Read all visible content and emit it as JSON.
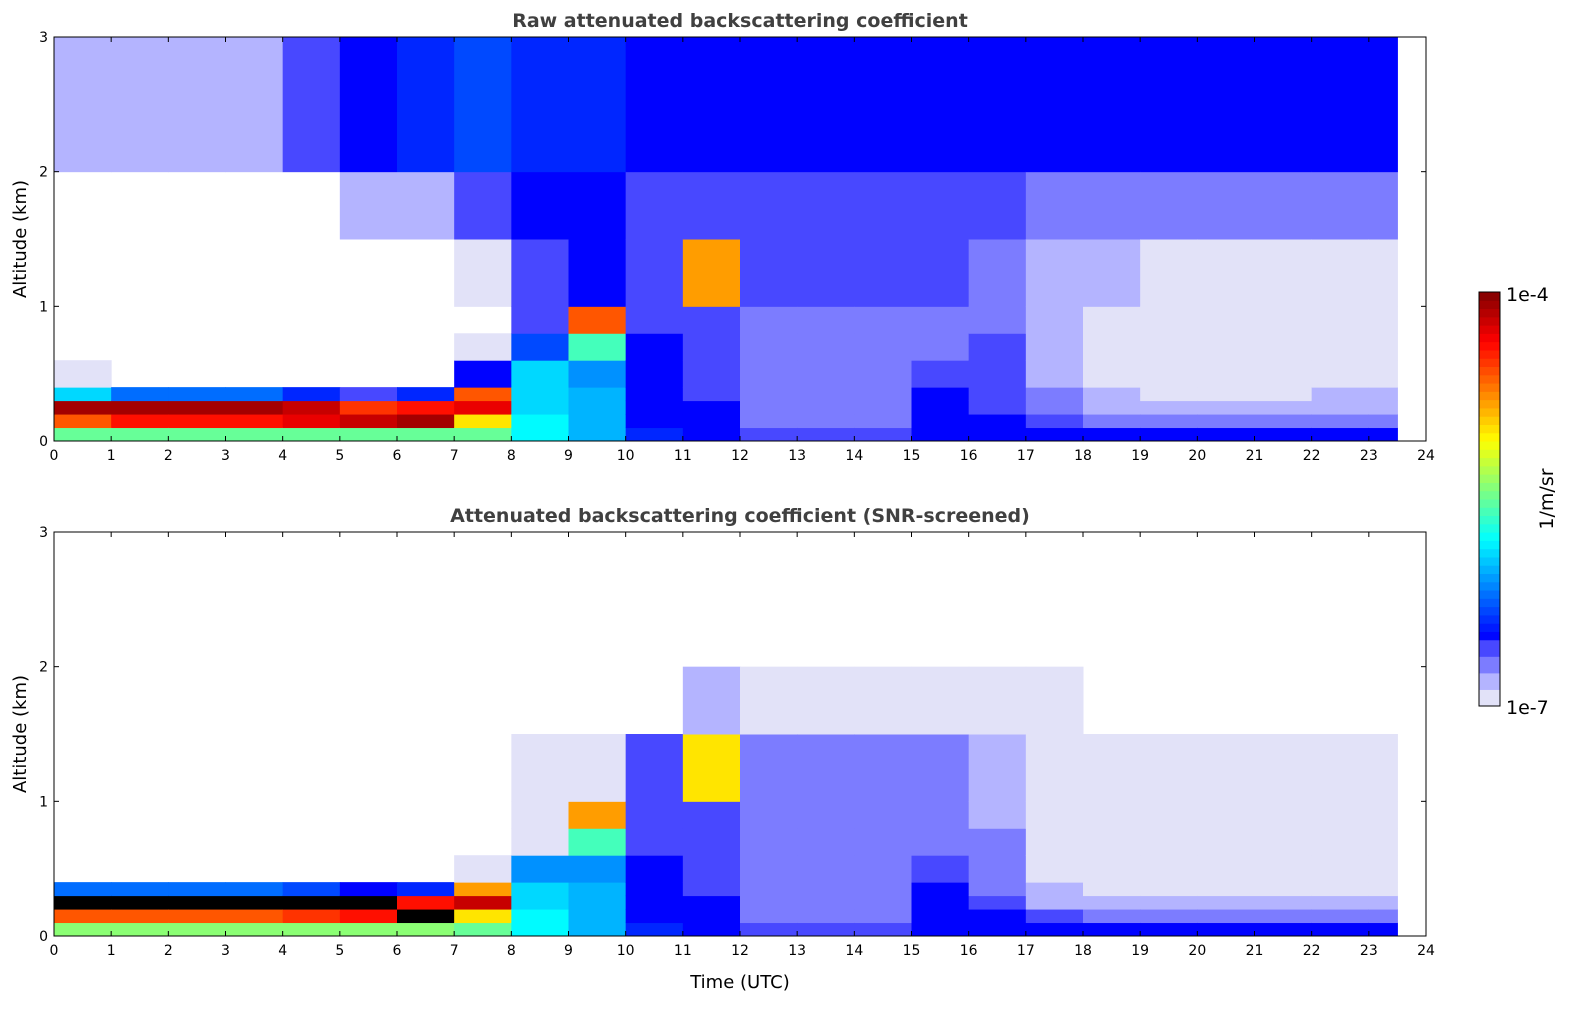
{
  "chart_data": [
    {
      "type": "heatmap",
      "title": "Raw attenuated backscattering coefficient",
      "xlabel": "",
      "ylabel": "Altitude (km)",
      "xlim": [
        0,
        24
      ],
      "ylim": [
        0,
        3
      ],
      "x_ticks": [
        "0",
        "1",
        "2",
        "3",
        "4",
        "5",
        "6",
        "7",
        "8",
        "9",
        "10",
        "11",
        "12",
        "13",
        "14",
        "15",
        "16",
        "17",
        "18",
        "19",
        "20",
        "21",
        "22",
        "23",
        "24"
      ],
      "y_ticks": [
        "0",
        "1",
        "2",
        "3"
      ],
      "value_scale": "log10",
      "x_bins_hours_start": 0,
      "x_end": 23.5,
      "altitude_bin_edges_km": [
        0,
        0.1,
        0.2,
        0.3,
        0.4,
        0.6,
        0.8,
        1.0,
        1.5,
        2.0,
        3.0
      ],
      "log10_values_by_hour": [
        [
          -5.5,
          -4.6,
          -4.1,
          -5.9,
          -6.9,
          null,
          null,
          null,
          null,
          -6.8
        ],
        [
          -5.5,
          -4.4,
          -4.1,
          -6.2,
          null,
          null,
          null,
          null,
          null,
          -6.8
        ],
        [
          -5.5,
          -4.4,
          -4.1,
          -6.2,
          null,
          null,
          null,
          null,
          null,
          -6.8
        ],
        [
          -5.5,
          -4.4,
          -4.1,
          -6.2,
          null,
          null,
          null,
          null,
          null,
          -6.8
        ],
        [
          -5.5,
          -4.3,
          -4.2,
          -6.4,
          null,
          null,
          null,
          null,
          null,
          -6.6
        ],
        [
          -5.5,
          -4.2,
          -4.5,
          -6.6,
          null,
          null,
          null,
          null,
          -6.8,
          -6.5
        ],
        [
          -5.5,
          -4.1,
          -4.4,
          -6.4,
          null,
          null,
          null,
          null,
          -6.8,
          -6.4
        ],
        [
          -5.5,
          -5.0,
          -4.3,
          -4.6,
          -6.5,
          -6.9,
          null,
          -6.9,
          -6.6,
          -6.3
        ],
        [
          -5.8,
          -5.8,
          -5.9,
          -5.9,
          -5.9,
          -6.3,
          -6.6,
          -6.6,
          -6.5,
          -6.4
        ],
        [
          -6.0,
          -6.0,
          -6.0,
          -6.0,
          -6.1,
          -5.6,
          -4.6,
          -6.5,
          -6.5,
          -6.4
        ],
        [
          -6.4,
          -6.5,
          -6.5,
          -6.5,
          -6.5,
          -6.5,
          -6.6,
          -6.6,
          -6.6,
          -6.5
        ],
        [
          -6.5,
          -6.5,
          -6.5,
          -6.6,
          -6.6,
          -6.6,
          -6.6,
          -4.8,
          -6.6,
          -6.5
        ],
        [
          -6.6,
          -6.7,
          -6.7,
          -6.7,
          -6.7,
          -6.7,
          -6.7,
          -6.6,
          -6.6,
          -6.5
        ],
        [
          -6.6,
          -6.7,
          -6.7,
          -6.7,
          -6.7,
          -6.7,
          -6.7,
          -6.6,
          -6.6,
          -6.5
        ],
        [
          -6.6,
          -6.7,
          -6.7,
          -6.7,
          -6.7,
          -6.7,
          -6.7,
          -6.6,
          -6.6,
          -6.5
        ],
        [
          -6.5,
          -6.5,
          -6.5,
          -6.5,
          -6.6,
          -6.7,
          -6.7,
          -6.6,
          -6.6,
          -6.5
        ],
        [
          -6.5,
          -6.5,
          -6.6,
          -6.6,
          -6.6,
          -6.6,
          -6.7,
          -6.7,
          -6.6,
          -6.5
        ],
        [
          -6.5,
          -6.6,
          -6.7,
          -6.7,
          -6.8,
          -6.8,
          -6.8,
          -6.8,
          -6.7,
          -6.5
        ],
        [
          -6.5,
          -6.7,
          -6.8,
          -6.8,
          -6.9,
          -6.9,
          -6.9,
          -6.8,
          -6.7,
          -6.5
        ],
        [
          -6.5,
          -6.7,
          -6.8,
          -6.9,
          -6.95,
          -6.95,
          -6.95,
          -6.9,
          -6.7,
          -6.5
        ],
        [
          -6.5,
          -6.7,
          -6.8,
          -6.9,
          -6.95,
          -6.95,
          -6.95,
          -6.9,
          -6.7,
          -6.5
        ],
        [
          -6.5,
          -6.7,
          -6.8,
          -6.9,
          -6.95,
          -6.95,
          -6.95,
          -6.9,
          -6.7,
          -6.5
        ],
        [
          -6.5,
          -6.7,
          -6.8,
          -6.85,
          -6.95,
          -6.95,
          -6.95,
          -6.9,
          -6.7,
          -6.5
        ],
        [
          -6.5,
          -6.7,
          -6.8,
          -6.85,
          -6.95,
          -6.95,
          -6.95,
          -6.9,
          -6.7,
          -6.5
        ]
      ]
    },
    {
      "type": "heatmap",
      "title": "Attenuated backscattering coefficient (SNR-screened)",
      "xlabel": "Time (UTC)",
      "ylabel": "Altitude (km)",
      "xlim": [
        0,
        24
      ],
      "ylim": [
        0,
        3
      ],
      "x_ticks": [
        "0",
        "1",
        "2",
        "3",
        "4",
        "5",
        "6",
        "7",
        "8",
        "9",
        "10",
        "11",
        "12",
        "13",
        "14",
        "15",
        "16",
        "17",
        "18",
        "19",
        "20",
        "21",
        "22",
        "23",
        "24"
      ],
      "y_ticks": [
        "0",
        "1",
        "2",
        "3"
      ],
      "value_scale": "log10",
      "x_bins_hours_start": 0,
      "x_end": 23.5,
      "altitude_bin_edges_km": [
        0,
        0.1,
        0.2,
        0.3,
        0.4,
        0.6,
        0.8,
        1.0,
        1.5,
        2.0,
        3.0
      ],
      "log10_values_by_hour": [
        [
          -5.4,
          -4.6,
          -3.9,
          -6.2,
          null,
          null,
          null,
          null,
          null,
          null
        ],
        [
          -5.4,
          -4.6,
          -3.9,
          -6.2,
          null,
          null,
          null,
          null,
          null,
          null
        ],
        [
          -5.4,
          -4.6,
          -3.9,
          -6.2,
          null,
          null,
          null,
          null,
          null,
          null
        ],
        [
          -5.4,
          -4.6,
          -3.9,
          -6.2,
          null,
          null,
          null,
          null,
          null,
          null
        ],
        [
          -5.4,
          -4.5,
          -3.9,
          -6.3,
          null,
          null,
          null,
          null,
          null,
          null
        ],
        [
          -5.4,
          -4.4,
          -3.9,
          -6.5,
          null,
          null,
          null,
          null,
          null,
          null
        ],
        [
          -5.4,
          -3.9,
          -4.4,
          -6.4,
          null,
          null,
          null,
          null,
          null,
          null
        ],
        [
          -5.5,
          -5.0,
          -4.2,
          -4.8,
          -6.9,
          null,
          null,
          null,
          null,
          null
        ],
        [
          -5.8,
          -5.8,
          -5.9,
          -5.9,
          -6.1,
          -6.9,
          -6.9,
          -6.9,
          null,
          null
        ],
        [
          -6.0,
          -6.0,
          -6.0,
          -6.0,
          -6.1,
          -5.6,
          -4.8,
          -6.9,
          null,
          null
        ],
        [
          -6.4,
          -6.5,
          -6.5,
          -6.5,
          -6.5,
          -6.6,
          -6.6,
          -6.6,
          null,
          null
        ],
        [
          -6.5,
          -6.5,
          -6.5,
          -6.6,
          -6.6,
          -6.6,
          -6.6,
          -5.0,
          -6.8,
          null
        ],
        [
          -6.6,
          -6.7,
          -6.7,
          -6.7,
          -6.7,
          -6.7,
          -6.7,
          -6.7,
          -6.9,
          null
        ],
        [
          -6.6,
          -6.7,
          -6.7,
          -6.7,
          -6.7,
          -6.7,
          -6.7,
          -6.7,
          -6.9,
          null
        ],
        [
          -6.6,
          -6.7,
          -6.7,
          -6.7,
          -6.7,
          -6.7,
          -6.7,
          -6.7,
          -6.9,
          null
        ],
        [
          -6.5,
          -6.5,
          -6.5,
          -6.5,
          -6.6,
          -6.7,
          -6.7,
          -6.7,
          -6.9,
          null
        ],
        [
          -6.5,
          -6.5,
          -6.6,
          -6.7,
          -6.7,
          -6.7,
          -6.8,
          -6.8,
          -6.95,
          null
        ],
        [
          -6.5,
          -6.6,
          -6.8,
          -6.85,
          -6.9,
          -6.9,
          -6.9,
          -6.9,
          -6.95,
          null
        ],
        [
          -6.5,
          -6.75,
          -6.85,
          -6.95,
          -6.95,
          -6.95,
          -6.95,
          -6.95,
          null,
          null
        ],
        [
          -6.5,
          -6.75,
          -6.85,
          -6.95,
          -6.95,
          -6.95,
          -6.95,
          -6.95,
          null,
          null
        ],
        [
          -6.5,
          -6.75,
          -6.85,
          -6.95,
          -6.95,
          -6.95,
          -6.95,
          -6.95,
          null,
          null
        ],
        [
          -6.5,
          -6.75,
          -6.85,
          -6.95,
          -6.95,
          -6.95,
          -6.95,
          -6.95,
          null,
          null
        ],
        [
          -6.5,
          -6.75,
          -6.85,
          -6.95,
          -6.95,
          -6.95,
          -6.95,
          -6.95,
          null,
          null
        ],
        [
          -6.5,
          -6.75,
          -6.85,
          -6.95,
          -6.95,
          -6.95,
          -6.95,
          -6.95,
          null,
          null
        ]
      ]
    }
  ],
  "colorbar": {
    "label": "1/m/sr",
    "max_label": "1e-4",
    "min_label": "1e-7",
    "log10_range": [
      -7,
      -4
    ],
    "colormap": "jet with light-lavender low end"
  }
}
